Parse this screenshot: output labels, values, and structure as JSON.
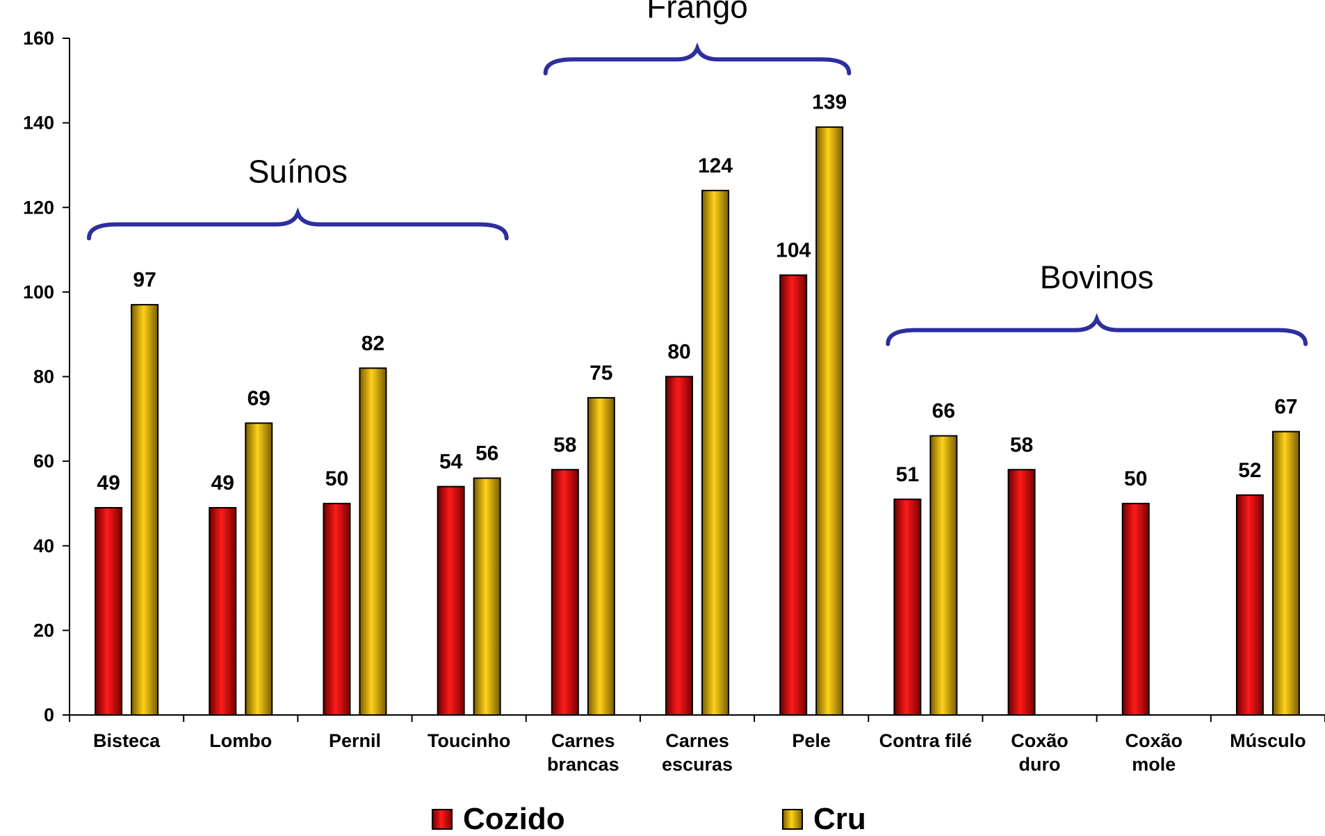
{
  "chart_data": {
    "type": "bar",
    "categories": [
      [
        "Bisteca"
      ],
      [
        "Lombo"
      ],
      [
        "Pernil"
      ],
      [
        "Toucinho"
      ],
      [
        "Carnes",
        "brancas"
      ],
      [
        "Carnes",
        "escuras"
      ],
      [
        "Pele"
      ],
      [
        "Contra filé"
      ],
      [
        "Coxão",
        "duro"
      ],
      [
        "Coxão",
        "mole"
      ],
      [
        "Músculo"
      ]
    ],
    "series": [
      {
        "name": "Cozido",
        "color": "#cc0000",
        "values": [
          49,
          49,
          50,
          54,
          58,
          80,
          104,
          51,
          58,
          50,
          52
        ]
      },
      {
        "name": "Cru",
        "color": "#d4a800",
        "values": [
          97,
          69,
          82,
          56,
          75,
          124,
          139,
          66,
          null,
          null,
          67
        ]
      }
    ],
    "ylim": [
      0,
      160
    ],
    "yticks": [
      0,
      20,
      40,
      60,
      80,
      100,
      120,
      140,
      160
    ],
    "groups": [
      {
        "label": "Suínos",
        "from": 0,
        "to": 3,
        "brace_y": 116
      },
      {
        "label": "Frango",
        "from": 4,
        "to": 6,
        "brace_y": 155
      },
      {
        "label": "Bovinos",
        "from": 7,
        "to": 10,
        "brace_y": 91
      }
    ],
    "legend_position": "bottom",
    "grid": false
  }
}
